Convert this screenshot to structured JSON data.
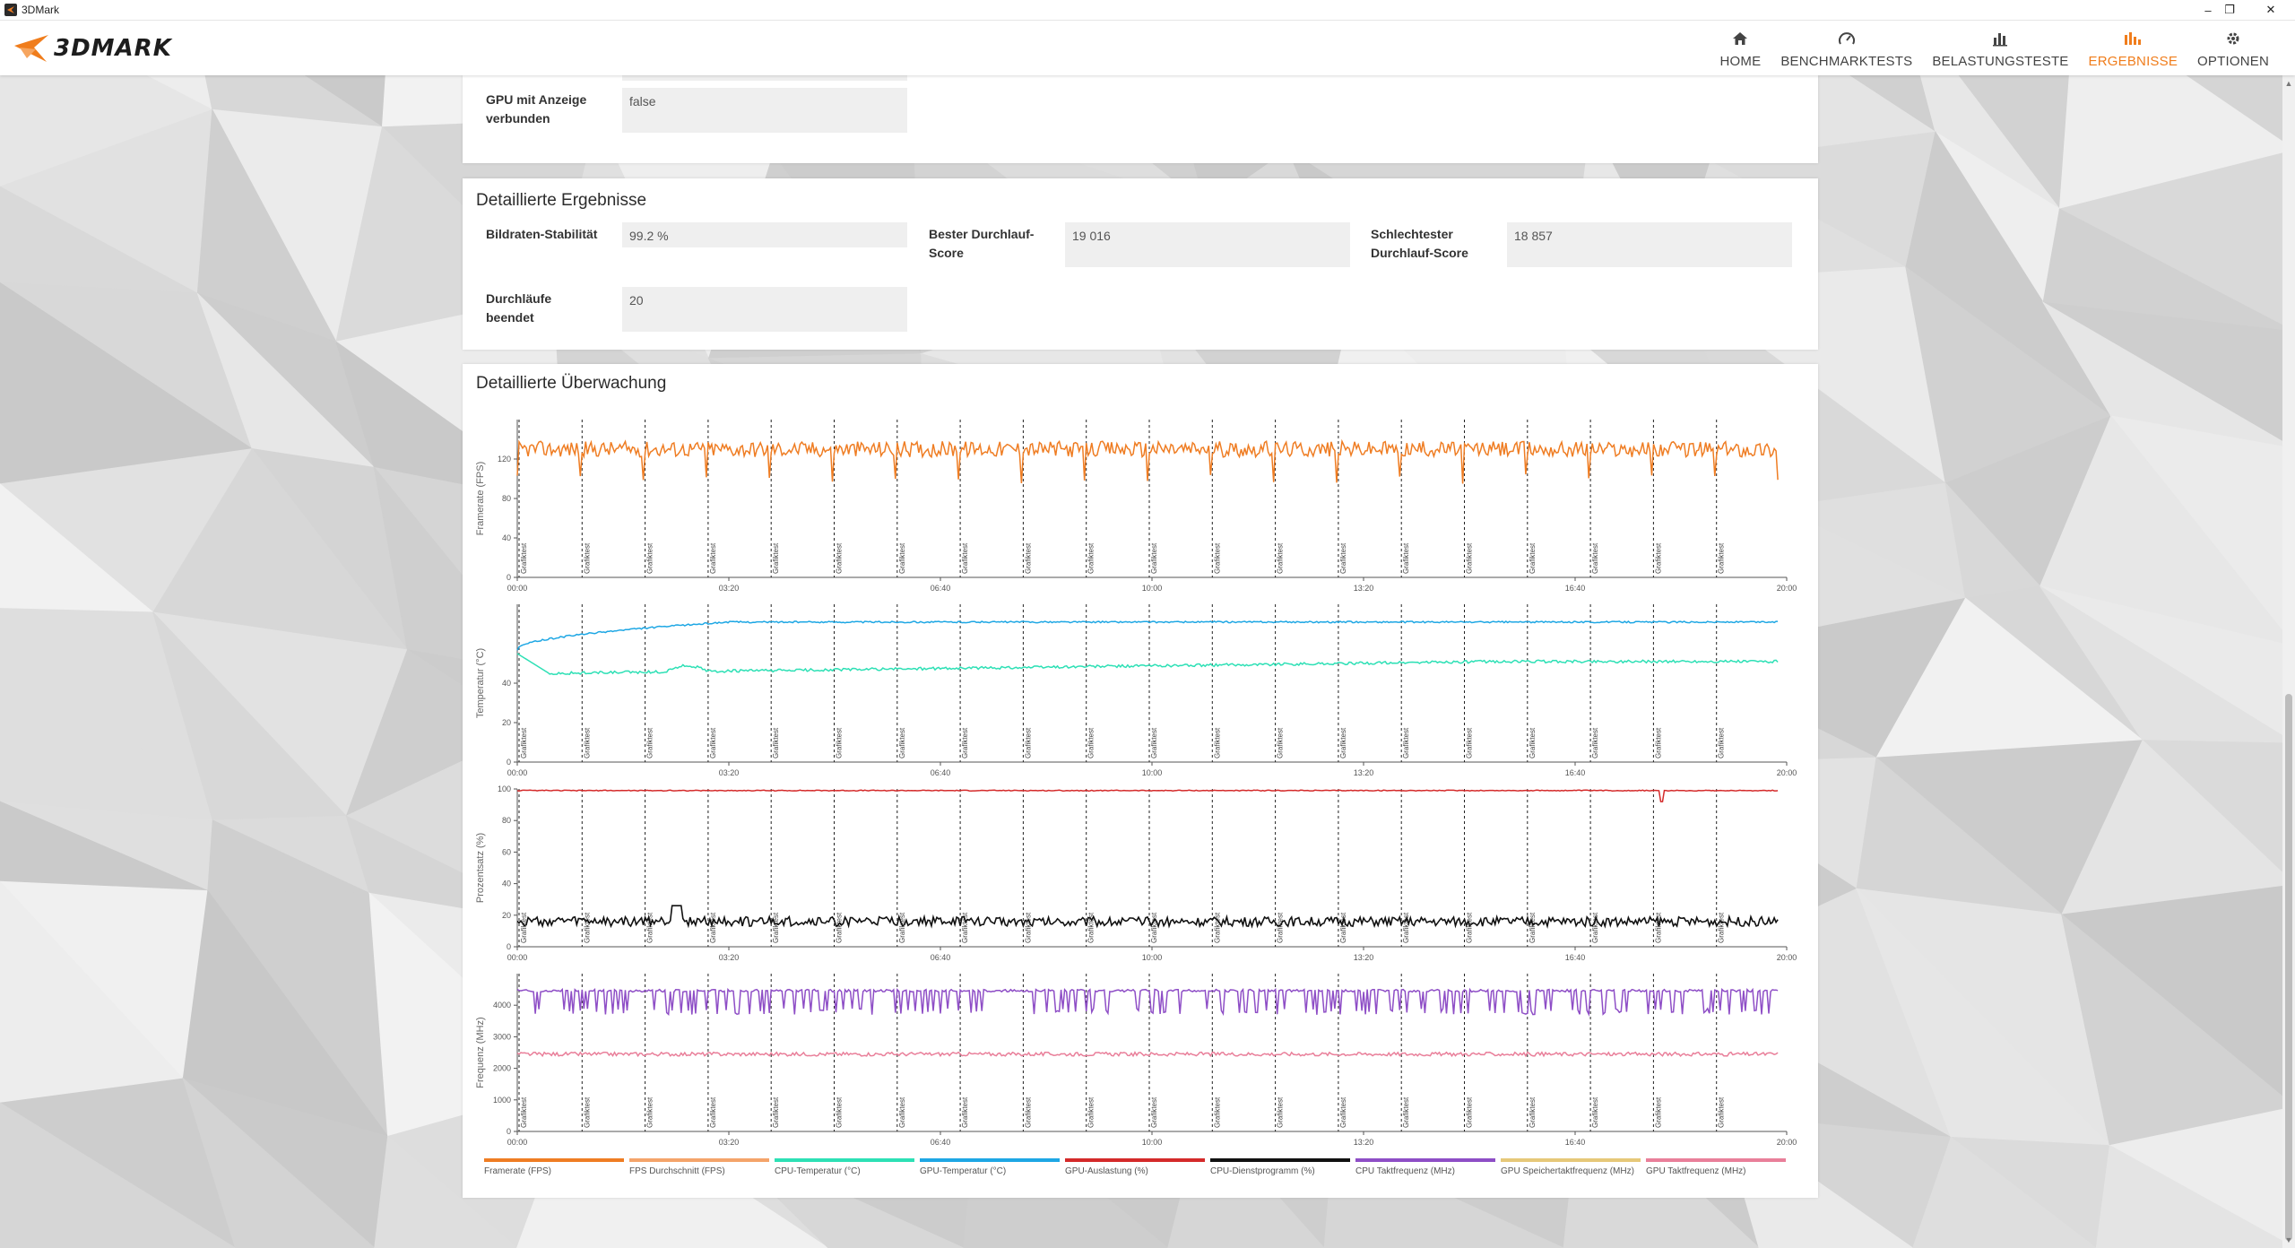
{
  "window": {
    "title": "3DMark",
    "controls": [
      "–",
      "❐",
      "✕"
    ]
  },
  "brand": {
    "logo_text": "3DMARK",
    "accent_color": "#f07d1c"
  },
  "nav": {
    "items": [
      {
        "label": "HOME",
        "icon": "home-icon",
        "active": false
      },
      {
        "label": "BENCHMARKTESTS",
        "icon": "gauge-icon",
        "active": false
      },
      {
        "label": "BELASTUNGSTESTE",
        "icon": "bar-chart-icon",
        "active": false
      },
      {
        "label": "ERGEBNISSE",
        "icon": "results-icon",
        "active": true
      },
      {
        "label": "OPTIONEN",
        "icon": "gear-icon",
        "active": false
      }
    ]
  },
  "system_info": {
    "gpu_display_label": "GPU mit Anzeige verbunden",
    "gpu_display_value": "false"
  },
  "detailed_results": {
    "title": "Detaillierte Ergebnisse",
    "fields": [
      {
        "label": "Bildraten-Stabilität",
        "value": "99.2 %"
      },
      {
        "label": "Bester Durchlauf-Score",
        "value": "19 016"
      },
      {
        "label": "Schlechtester Durchlauf-Score",
        "value": "18 857"
      },
      {
        "label": "Durchläufe beendet",
        "value": "20"
      }
    ]
  },
  "monitoring": {
    "title": "Detaillierte Überwachung",
    "marker_label": "Grafiktest",
    "x_ticks": [
      "00:00",
      "03:20",
      "06:40",
      "10:00",
      "13:20",
      "16:40",
      "20:00"
    ],
    "legend": [
      {
        "label": "Framerate (FPS)",
        "color": "#ef7d23"
      },
      {
        "label": "FPS Durchschnitt (FPS)",
        "color": "#f4a46a"
      },
      {
        "label": "CPU-Temperatur (°C)",
        "color": "#2de0b5"
      },
      {
        "label": "GPU-Temperatur (°C)",
        "color": "#1ea7e4"
      },
      {
        "label": "GPU-Auslastung (%)",
        "color": "#d42a2a"
      },
      {
        "label": "CPU-Dienstprogramm (%)",
        "color": "#111111"
      },
      {
        "label": "CPU Taktfrequenz (MHz)",
        "color": "#8e4ec6"
      },
      {
        "label": "GPU Speichertaktfrequenz (MHz)",
        "color": "#e6c879"
      },
      {
        "label": "GPU Taktfrequenz (MHz)",
        "color": "#e97f9a"
      }
    ]
  },
  "chart_data": [
    {
      "type": "line",
      "ylabel": "Framerate (FPS)",
      "ylim": [
        0,
        160
      ],
      "yticks": [
        0,
        40,
        80,
        120
      ],
      "xlim_seconds": [
        0,
        1200
      ],
      "run_markers_count": 20,
      "series": [
        {
          "name": "Framerate (FPS)",
          "color": "#ef7d23",
          "baseline": 130,
          "range": [
            95,
            142
          ],
          "dip_per_run": 95
        }
      ]
    },
    {
      "type": "line",
      "ylabel": "Temperatur (°C)",
      "ylim": [
        0,
        80
      ],
      "yticks": [
        0,
        20,
        40
      ],
      "xlim_seconds": [
        0,
        1200
      ],
      "run_markers_count": 20,
      "series": [
        {
          "name": "GPU-Temperatur (°C)",
          "color": "#1ea7e4",
          "start": 57,
          "plateau": 71
        },
        {
          "name": "CPU-Temperatur (°C)",
          "color": "#2de0b5",
          "start": 55,
          "min": 45,
          "plateau": 51
        }
      ]
    },
    {
      "type": "line",
      "ylabel": "Prozentsatz (%)",
      "ylim": [
        0,
        100
      ],
      "yticks": [
        0,
        20,
        40,
        60,
        80,
        100
      ],
      "xlim_seconds": [
        0,
        1200
      ],
      "run_markers_count": 20,
      "series": [
        {
          "name": "GPU-Auslastung (%)",
          "color": "#d42a2a",
          "baseline": 99
        },
        {
          "name": "CPU-Dienstprogramm (%)",
          "color": "#111111",
          "baseline": 16,
          "peak": 26
        }
      ]
    },
    {
      "type": "line",
      "ylabel": "Frequenz (MHz)",
      "ylim": [
        0,
        5000
      ],
      "yticks": [
        0,
        1000,
        2000,
        3000,
        4000
      ],
      "xlim_seconds": [
        0,
        1200
      ],
      "run_markers_count": 20,
      "series": [
        {
          "name": "CPU Taktfrequenz (MHz)",
          "color": "#8e4ec6",
          "high": 4500,
          "low": 3700
        },
        {
          "name": "GPU Taktfrequenz (MHz)",
          "color": "#e97f9a",
          "baseline": 2450
        }
      ]
    }
  ]
}
